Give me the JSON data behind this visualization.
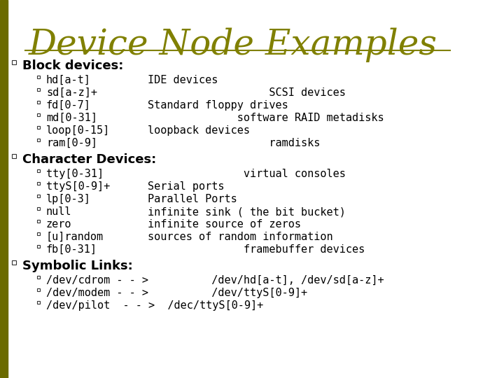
{
  "title": "Device Node Examples",
  "title_color": "#808000",
  "title_fontsize": 36,
  "background_color": "#ffffff",
  "line_color": "#808000",
  "bullet_color": "#404040",
  "text_color": "#000000",
  "section_fontsize": 13,
  "item_fontsize": 11,
  "sections": [
    {
      "heading": "Block devices:",
      "heading_bold": true,
      "items": [
        [
          "hd[a-t]",
          "IDE devices"
        ],
        [
          "sd[a-z]+",
          "                   SCSI devices"
        ],
        [
          "fd[0-7]",
          "Standard floppy drives"
        ],
        [
          "md[0-31]",
          "              software RAID metadisks"
        ],
        [
          "loop[0-15]",
          "loopback devices"
        ],
        [
          "ram[0-9]",
          "                   ramdisks"
        ]
      ]
    },
    {
      "heading": "Character Devices:",
      "heading_bold": true,
      "items": [
        [
          "tty[0-31]",
          "               virtual consoles"
        ],
        [
          "ttyS[0-9]+",
          "Serial ports"
        ],
        [
          "lp[0-3]",
          "Parallel Ports"
        ],
        [
          "null",
          "infinite sink ( the bit bucket)"
        ],
        [
          "zero",
          "infinite source of zeros"
        ],
        [
          "[u]random",
          "sources of random information"
        ],
        [
          "fb[0-31]",
          "               framebuffer devices"
        ]
      ]
    },
    {
      "heading": "Symbolic Links:",
      "heading_bold": true,
      "items": [
        [
          "/dev/cdrom - - >",
          "          /dev/hd[a-t], /dev/sd[a-z]+"
        ],
        [
          "/dev/modem - - >",
          "          /dev/ttyS[0-9]+"
        ],
        [
          "/dev/pilot  - - >  /dec/ttyS[0-9]+",
          ""
        ]
      ]
    }
  ]
}
